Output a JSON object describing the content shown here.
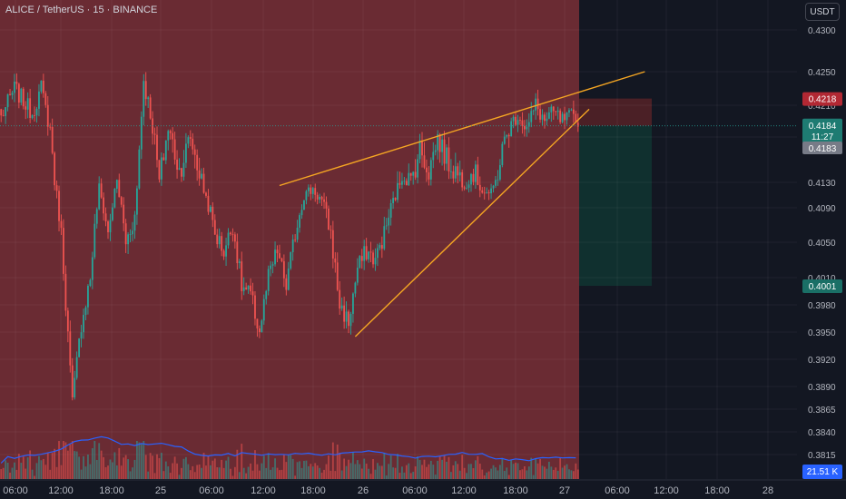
{
  "header": {
    "title": "ALICE / TetherUS · 15 · BINANCE"
  },
  "currency_button": {
    "label": "USDT"
  },
  "price_axis": {
    "ticks": [
      "0.4300",
      "0.4250",
      "0.4210",
      "0.4170",
      "0.4130",
      "0.4090",
      "0.4050",
      "0.4010",
      "0.3980",
      "0.3950",
      "0.3920",
      "0.3890",
      "0.3865",
      "0.3840",
      "0.3815"
    ]
  },
  "time_axis": {
    "ticks": [
      "06:00",
      "12:00",
      "18:00",
      "25",
      "06:00",
      "12:00",
      "18:00",
      "26",
      "06:00",
      "12:00",
      "18:00",
      "27",
      "06:00",
      "12:00",
      "18:00",
      "28"
    ]
  },
  "badges": {
    "stop_loss": "0.4218",
    "last_price": "0.4184",
    "countdown": "11:27",
    "last_close": "0.4183",
    "take_profit": "0.4001",
    "volume": "21.51 K"
  },
  "colors": {
    "background": "#131722",
    "red_zone": "#6a2b33",
    "stop_zone": "#4b2026",
    "target_zone": "#10302f",
    "bull": "#26a69a",
    "bear": "#ef5350",
    "wedge_lines": "#f5a623",
    "volume_ma": "#2962ff"
  },
  "chart_data": {
    "type": "candlestick",
    "symbol": "ALICE / TetherUS",
    "interval": "15",
    "exchange": "BINANCE",
    "ylim": [
      0.38,
      0.432
    ],
    "y_scale": "nonlinear",
    "last_price": 0.4184,
    "last_close": 0.4183,
    "candles": {
      "count": 260,
      "anchors": [
        [
          0,
          0.4195
        ],
        [
          6,
          0.423
        ],
        [
          14,
          0.42
        ],
        [
          18,
          0.423
        ],
        [
          22,
          0.418
        ],
        [
          27,
          0.406
        ],
        [
          32,
          0.387
        ],
        [
          36,
          0.396
        ],
        [
          40,
          0.401
        ],
        [
          44,
          0.412
        ],
        [
          48,
          0.406
        ],
        [
          52,
          0.413
        ],
        [
          56,
          0.405
        ],
        [
          60,
          0.408
        ],
        [
          64,
          0.424
        ],
        [
          67,
          0.42
        ],
        [
          71,
          0.413
        ],
        [
          75,
          0.418
        ],
        [
          80,
          0.414
        ],
        [
          85,
          0.417
        ],
        [
          90,
          0.413
        ],
        [
          96,
          0.406
        ],
        [
          100,
          0.404
        ],
        [
          104,
          0.407
        ],
        [
          108,
          0.4
        ],
        [
          112,
          0.399
        ],
        [
          116,
          0.395
        ],
        [
          120,
          0.401
        ],
        [
          124,
          0.404
        ],
        [
          128,
          0.4
        ],
        [
          132,
          0.406
        ],
        [
          136,
          0.411
        ],
        [
          140,
          0.412
        ],
        [
          144,
          0.41
        ],
        [
          148,
          0.406
        ],
        [
          152,
          0.398
        ],
        [
          156,
          0.396
        ],
        [
          160,
          0.402
        ],
        [
          164,
          0.404
        ],
        [
          168,
          0.403
        ],
        [
          172,
          0.406
        ],
        [
          176,
          0.41
        ],
        [
          180,
          0.414
        ],
        [
          184,
          0.413
        ],
        [
          188,
          0.416
        ],
        [
          192,
          0.414
        ],
        [
          196,
          0.417
        ],
        [
          200,
          0.415
        ],
        [
          204,
          0.414
        ],
        [
          208,
          0.413
        ],
        [
          212,
          0.414
        ],
        [
          216,
          0.412
        ],
        [
          220,
          0.411
        ],
        [
          224,
          0.415
        ],
        [
          228,
          0.418
        ],
        [
          232,
          0.42
        ],
        [
          236,
          0.418
        ],
        [
          240,
          0.421
        ],
        [
          244,
          0.419
        ],
        [
          248,
          0.42
        ],
        [
          252,
          0.419
        ],
        [
          256,
          0.4195
        ],
        [
          259,
          0.4183
        ]
      ]
    },
    "drawings": {
      "upper_trendline": {
        "from": [
          125,
          0.4125
        ],
        "to": [
          289,
          0.425
        ]
      },
      "lower_trendline": {
        "from": [
          159,
          0.3945
        ],
        "to": [
          264,
          0.4205
        ]
      },
      "stop_loss_zone": {
        "top": 0.4218,
        "bottom": 0.4184
      },
      "take_profit_zone": {
        "top": 0.4184,
        "bottom": 0.4001
      }
    },
    "volume": {
      "last": "21.51 K"
    }
  }
}
